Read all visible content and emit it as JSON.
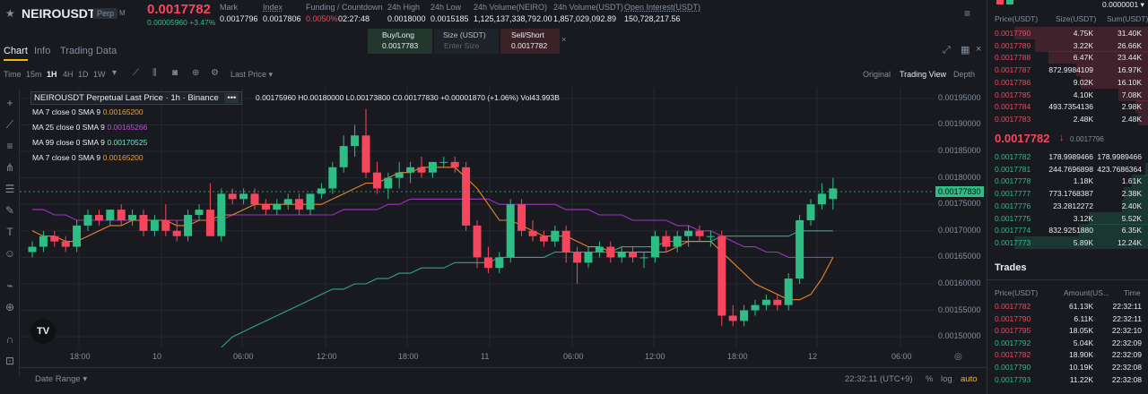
{
  "header": {
    "star_icon": "star-icon",
    "symbol": "NEIROUSDT",
    "badge": "Perp",
    "badge_extra": "M",
    "last_price": "0.0017782",
    "change": "0.00005960 +3.47%",
    "stats": [
      {
        "label": "Mark",
        "value": "0.0017796"
      },
      {
        "label": "Index",
        "value": "0.0017806"
      },
      {
        "label": "Funding / Countdown",
        "value": "0.0050%",
        "value2": "02:27:48"
      },
      {
        "label": "24h High",
        "value": "0.0018000"
      },
      {
        "label": "24h Low",
        "value": "0.0015185"
      },
      {
        "label": "24h Volume(NEIRO)",
        "value": "1,125,137,338,792.00"
      },
      {
        "label": "24h Volume(USDT)",
        "value": "1,857,029,092.89"
      },
      {
        "label": "Open Interest(USDT)",
        "value": "150,728,217.56"
      }
    ],
    "more_icon": "menu-icon"
  },
  "tabs": {
    "chart": "Chart",
    "info": "Info",
    "trading_data": "Trading Data"
  },
  "quick_trade": {
    "buy_label": "Buy/Long",
    "buy_price": "0.0017783",
    "size_label": "Size (USDT)",
    "size_placeholder": "Enter Size",
    "sell_label": "Sell/Short",
    "sell_price": "0.0017782",
    "close": "×"
  },
  "toolbar": {
    "time_label": "Time",
    "intervals": [
      "15m",
      "1H",
      "4H",
      "1D",
      "1W"
    ],
    "active_interval": "1H",
    "price_type": "Last Price",
    "views": [
      "Original",
      "Trading View",
      "Depth"
    ],
    "active_view": "Trading View"
  },
  "legend": {
    "title": "NEIROUSDT Perpetual Last Price · 1h · Binance",
    "ohlc": "0.00175960 H0.00180000 L0.00173800 C0.00177830 +0.00001870 (+1.06%) Vol43.993B",
    "ma": [
      {
        "label": "MA 7 close 0 SMA 9",
        "value": "0.00165200",
        "color": "#f0a030"
      },
      {
        "label": "MA 25 close 0 SMA 9",
        "value": "0.00165266",
        "color": "#c04fd8"
      },
      {
        "label": "MA 99 close 0 SMA 9",
        "value": "0.00170525",
        "color": "#35c0a0"
      },
      {
        "label": "MA 7 close 0 SMA 9",
        "value": "0.00165200",
        "color": "#f0a030"
      }
    ]
  },
  "price_axis": [
    "0.00195000",
    "0.00190000",
    "0.00185000",
    "0.00180000",
    "0.00175000",
    "0.00170000",
    "0.00165000",
    "0.00160000",
    "0.00155000",
    "0.00150000"
  ],
  "current_price_tag": "0.00177830",
  "time_axis": [
    "18:00",
    "10",
    "06:00",
    "12:00",
    "18:00",
    "11",
    "06:00",
    "12:00",
    "18:00",
    "12",
    "06:00"
  ],
  "footer": {
    "date_range": "Date Range",
    "clock": "22:32:11 (UTC+9)",
    "pct": "%",
    "log": "log",
    "auto": "auto"
  },
  "orderbook": {
    "precision": "0.0000001",
    "headers": [
      "Price(USDT)",
      "Size(USDT)",
      "Sum(USDT)"
    ],
    "asks": [
      {
        "price": "0.0017790",
        "size": "4.75K",
        "sum": "31.40K",
        "depth": 1.0
      },
      {
        "price": "0.0017789",
        "size": "3.22K",
        "sum": "26.66K",
        "depth": 0.85
      },
      {
        "price": "0.0017788",
        "size": "6.47K",
        "sum": "23.44K",
        "depth": 0.75
      },
      {
        "price": "0.0017787",
        "size": "872.9984109",
        "sum": "16.97K",
        "depth": 0.54
      },
      {
        "price": "0.0017786",
        "size": "9.02K",
        "sum": "16.10K",
        "depth": 0.51
      },
      {
        "price": "0.0017785",
        "size": "4.10K",
        "sum": "7.08K",
        "depth": 0.23
      },
      {
        "price": "0.0017784",
        "size": "493.7354136",
        "sum": "2.98K",
        "depth": 0.1
      },
      {
        "price": "0.0017783",
        "size": "2.48K",
        "sum": "2.48K",
        "depth": 0.08
      }
    ],
    "mid_price": "0.0017782",
    "mid_mark": "0.0017796",
    "bids": [
      {
        "price": "0.0017782",
        "size": "178.9989466",
        "sum": "178.9989466",
        "depth": 0.01
      },
      {
        "price": "0.0017781",
        "size": "244.7696898",
        "sum": "423.7686364",
        "depth": 0.03
      },
      {
        "price": "0.0017778",
        "size": "1.18K",
        "sum": "1.61K",
        "depth": 0.13
      },
      {
        "price": "0.0017777",
        "size": "773.1768387",
        "sum": "2.38K",
        "depth": 0.19
      },
      {
        "price": "0.0017776",
        "size": "23.2812272",
        "sum": "2.40K",
        "depth": 0.2
      },
      {
        "price": "0.0017775",
        "size": "3.12K",
        "sum": "5.52K",
        "depth": 0.45
      },
      {
        "price": "0.0017774",
        "size": "832.9251880",
        "sum": "6.35K",
        "depth": 0.52
      },
      {
        "price": "0.0017773",
        "size": "5.89K",
        "sum": "12.24K",
        "depth": 1.0
      }
    ],
    "trades_title": "Trades",
    "trade_headers": [
      "Price(USDT)",
      "Amount(US...",
      "Time"
    ],
    "trades": [
      {
        "price": "0.0017782",
        "amount": "61.13K",
        "time": "22:32:11",
        "side": "sell"
      },
      {
        "price": "0.0017790",
        "amount": "6.11K",
        "time": "22:32:11",
        "side": "sell"
      },
      {
        "price": "0.0017795",
        "amount": "18.05K",
        "time": "22:32:10",
        "side": "sell"
      },
      {
        "price": "0.0017792",
        "amount": "5.04K",
        "time": "22:32:09",
        "side": "buy"
      },
      {
        "price": "0.0017782",
        "amount": "18.90K",
        "time": "22:32:09",
        "side": "sell"
      },
      {
        "price": "0.0017790",
        "amount": "10.19K",
        "time": "22:32:08",
        "side": "buy"
      },
      {
        "price": "0.0017793",
        "amount": "11.22K",
        "time": "22:32:08",
        "side": "buy"
      }
    ]
  },
  "chart_data": {
    "type": "candlestick",
    "ylim": [
      0.00148,
      0.00197
    ],
    "candles": [
      [
        0.00166,
        0.00168,
        0.00165,
        0.00167
      ],
      [
        0.00167,
        0.0017,
        0.00166,
        0.00169
      ],
      [
        0.00169,
        0.0017,
        0.00167,
        0.00168
      ],
      [
        0.00168,
        0.00169,
        0.00166,
        0.00167
      ],
      [
        0.00167,
        0.00172,
        0.00166,
        0.00171
      ],
      [
        0.00171,
        0.00174,
        0.0017,
        0.00173
      ],
      [
        0.00173,
        0.00174,
        0.00171,
        0.00172
      ],
      [
        0.00172,
        0.00174,
        0.00171,
        0.00174
      ],
      [
        0.00174,
        0.00175,
        0.00171,
        0.00172
      ],
      [
        0.00172,
        0.00174,
        0.00171,
        0.00173
      ],
      [
        0.00173,
        0.00174,
        0.00169,
        0.0017
      ],
      [
        0.0017,
        0.00173,
        0.00169,
        0.00172
      ],
      [
        0.00172,
        0.00175,
        0.00169,
        0.0017
      ],
      [
        0.0017,
        0.00172,
        0.00168,
        0.00169
      ],
      [
        0.00169,
        0.00174,
        0.00168,
        0.00173
      ],
      [
        0.00173,
        0.00175,
        0.00172,
        0.00174
      ],
      [
        0.00174,
        0.00179,
        0.00169,
        0.00169
      ],
      [
        0.00169,
        0.00178,
        0.00168,
        0.00177
      ],
      [
        0.00177,
        0.00178,
        0.00175,
        0.00176
      ],
      [
        0.00176,
        0.00178,
        0.00175,
        0.00177
      ],
      [
        0.00177,
        0.00178,
        0.00174,
        0.00175
      ],
      [
        0.00175,
        0.00176,
        0.00173,
        0.00174
      ],
      [
        0.00174,
        0.00176,
        0.00173,
        0.00175
      ],
      [
        0.00175,
        0.00177,
        0.00174,
        0.00176
      ],
      [
        0.00176,
        0.00177,
        0.00173,
        0.00174
      ],
      [
        0.00174,
        0.00177,
        0.00173,
        0.00177
      ],
      [
        0.00177,
        0.00179,
        0.00176,
        0.00178
      ],
      [
        0.00178,
        0.00183,
        0.00177,
        0.00182
      ],
      [
        0.00182,
        0.00188,
        0.00181,
        0.00186
      ],
      [
        0.00186,
        0.0019,
        0.00184,
        0.00188
      ],
      [
        0.00188,
        0.00193,
        0.0018,
        0.00181
      ],
      [
        0.00181,
        0.00183,
        0.00177,
        0.00178
      ],
      [
        0.00178,
        0.00181,
        0.00176,
        0.0018
      ],
      [
        0.0018,
        0.00183,
        0.00178,
        0.00181
      ],
      [
        0.00181,
        0.00183,
        0.00179,
        0.00182
      ],
      [
        0.00182,
        0.00184,
        0.0018,
        0.00181
      ],
      [
        0.00181,
        0.00183,
        0.0018,
        0.00183
      ],
      [
        0.00183,
        0.00184,
        0.00182,
        0.00183
      ],
      [
        0.00183,
        0.00184,
        0.00181,
        0.00182
      ],
      [
        0.00182,
        0.00183,
        0.0017,
        0.00171
      ],
      [
        0.00171,
        0.00172,
        0.00163,
        0.00165
      ],
      [
        0.00165,
        0.00167,
        0.00162,
        0.00163
      ],
      [
        0.00163,
        0.00166,
        0.00162,
        0.00165
      ],
      [
        0.00165,
        0.00176,
        0.00164,
        0.00175
      ],
      [
        0.00175,
        0.00176,
        0.00169,
        0.0017
      ],
      [
        0.0017,
        0.00172,
        0.00168,
        0.00169
      ],
      [
        0.00169,
        0.0017,
        0.00167,
        0.00168
      ],
      [
        0.00168,
        0.00171,
        0.00167,
        0.0017
      ],
      [
        0.0017,
        0.00171,
        0.00164,
        0.00166
      ],
      [
        0.00166,
        0.00167,
        0.0016,
        0.00164
      ],
      [
        0.00164,
        0.00167,
        0.00163,
        0.00166
      ],
      [
        0.00166,
        0.00168,
        0.00165,
        0.00167
      ],
      [
        0.00167,
        0.00168,
        0.00164,
        0.00165
      ],
      [
        0.00165,
        0.00167,
        0.00164,
        0.00166
      ],
      [
        0.00166,
        0.00167,
        0.00164,
        0.00165
      ],
      [
        0.00165,
        0.00166,
        0.00163,
        0.00165
      ],
      [
        0.00165,
        0.0017,
        0.00164,
        0.00169
      ],
      [
        0.00169,
        0.0017,
        0.00166,
        0.00167
      ],
      [
        0.00167,
        0.0017,
        0.00166,
        0.00169
      ],
      [
        0.00169,
        0.00171,
        0.00167,
        0.0017
      ],
      [
        0.0017,
        0.00171,
        0.00168,
        0.00169
      ],
      [
        0.00169,
        0.0017,
        0.00167,
        0.00169
      ],
      [
        0.00169,
        0.0017,
        0.00152,
        0.00154
      ],
      [
        0.00154,
        0.00156,
        0.00152,
        0.00153
      ],
      [
        0.00153,
        0.00156,
        0.00152,
        0.00155
      ],
      [
        0.00155,
        0.00157,
        0.00154,
        0.00156
      ],
      [
        0.00156,
        0.00158,
        0.00155,
        0.00157
      ],
      [
        0.00157,
        0.00158,
        0.00155,
        0.00156
      ],
      [
        0.00156,
        0.00162,
        0.00155,
        0.00161
      ],
      [
        0.00161,
        0.00173,
        0.0016,
        0.00172
      ],
      [
        0.00172,
        0.00176,
        0.00171,
        0.00175
      ],
      [
        0.00175,
        0.00179,
        0.00174,
        0.00177
      ],
      [
        0.00176,
        0.0018,
        0.00174,
        0.00178
      ]
    ],
    "ma_orange": [
      0.0017,
      0.00169,
      0.00169,
      0.00168,
      0.00168,
      0.00169,
      0.0017,
      0.00171,
      0.00171,
      0.00172,
      0.00172,
      0.00172,
      0.00172,
      0.00171,
      0.00171,
      0.00172,
      0.00172,
      0.00173,
      0.00173,
      0.00174,
      0.00175,
      0.00175,
      0.00175,
      0.00175,
      0.00175,
      0.00175,
      0.00175,
      0.00176,
      0.00177,
      0.00178,
      0.00179,
      0.00179,
      0.0018,
      0.00181,
      0.00181,
      0.00182,
      0.00182,
      0.00182,
      0.00182,
      0.0018,
      0.00178,
      0.00175,
      0.00172,
      0.00172,
      0.00171,
      0.0017,
      0.00169,
      0.00169,
      0.00169,
      0.00168,
      0.00167,
      0.00167,
      0.00166,
      0.00166,
      0.00166,
      0.00166,
      0.00166,
      0.00166,
      0.00167,
      0.00168,
      0.00168,
      0.00168,
      0.00166,
      0.00164,
      0.00162,
      0.0016,
      0.00159,
      0.00158,
      0.00157,
      0.00157,
      0.00158,
      0.00161,
      0.00165
    ],
    "ma_purple": [
      0.00174,
      0.00174,
      0.00173,
      0.00173,
      0.00172,
      0.00172,
      0.00172,
      0.00172,
      0.00172,
      0.00172,
      0.00172,
      0.00172,
      0.00172,
      0.00172,
      0.00172,
      0.00172,
      0.00172,
      0.00172,
      0.00173,
      0.00173,
      0.00173,
      0.00173,
      0.00173,
      0.00173,
      0.00173,
      0.00173,
      0.00173,
      0.00173,
      0.00174,
      0.00174,
      0.00174,
      0.00174,
      0.00175,
      0.00175,
      0.00176,
      0.00176,
      0.00176,
      0.00176,
      0.00176,
      0.00176,
      0.00176,
      0.00176,
      0.00175,
      0.00175,
      0.00175,
      0.00175,
      0.00175,
      0.00175,
      0.00174,
      0.00174,
      0.00174,
      0.00173,
      0.00173,
      0.00173,
      0.00172,
      0.00172,
      0.00172,
      0.00172,
      0.00171,
      0.00171,
      0.0017,
      0.0017,
      0.00169,
      0.00168,
      0.00167,
      0.00167,
      0.00166,
      0.00166,
      0.00165,
      0.00165,
      0.00165,
      0.00165,
      0.00165
    ],
    "ma_teal": [
      null,
      null,
      null,
      null,
      null,
      null,
      null,
      null,
      null,
      null,
      null,
      null,
      null,
      null,
      null,
      null,
      null,
      0.00148,
      0.0015,
      0.00151,
      0.00152,
      0.00153,
      0.00154,
      0.00155,
      0.00156,
      0.00157,
      0.00158,
      0.00159,
      0.00159,
      0.0016,
      0.0016,
      0.00161,
      0.00161,
      0.00162,
      0.00162,
      0.00163,
      0.00163,
      0.00163,
      0.00164,
      0.00164,
      0.00164,
      0.00164,
      0.00165,
      0.00165,
      0.00165,
      0.00165,
      0.00165,
      0.00166,
      0.00166,
      0.00166,
      0.00166,
      0.00166,
      0.00166,
      0.00167,
      0.00167,
      0.00167,
      0.00167,
      0.00168,
      0.00168,
      0.00168,
      0.00168,
      0.00168,
      0.00169,
      0.00169,
      0.00169,
      0.00169,
      0.00169,
      0.00169,
      0.00169,
      0.0017,
      0.0017,
      0.0017,
      0.0017
    ]
  }
}
